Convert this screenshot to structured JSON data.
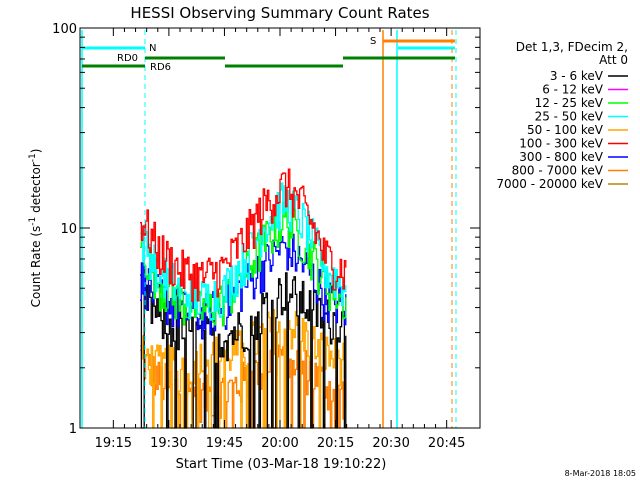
{
  "chart_data": {
    "type": "line",
    "title": "HESSI Observing Summary Count Rates",
    "xlabel": "Start Time (03-Mar-18 19:10:22)",
    "ylabel_main": "Count Rate (s",
    "ylabel_sup1": "-1",
    "ylabel_mid": " detector",
    "ylabel_sup2": "-1",
    "ylabel_end": ")",
    "yscale": "log",
    "ylim": [
      1,
      100
    ],
    "xlim_minutes": [
      19.1,
      20.9
    ],
    "yticks": [
      {
        "value": 100,
        "label": "100"
      },
      {
        "value": 10,
        "label": "10"
      },
      {
        "value": 1,
        "label": "1"
      }
    ],
    "xticks": [
      {
        "value": 19.25,
        "label": "19:15"
      },
      {
        "value": 19.5,
        "label": "19:30"
      },
      {
        "value": 19.75,
        "label": "19:45"
      },
      {
        "value": 20.0,
        "label": "20:00"
      },
      {
        "value": 20.25,
        "label": "20:15"
      },
      {
        "value": 20.5,
        "label": "20:30"
      },
      {
        "value": 20.75,
        "label": "20:45"
      }
    ],
    "legend_header": [
      "Det 1,3, FDecim 2,",
      "Att 0"
    ],
    "series": [
      {
        "name": "3 - 6 keV",
        "color": "#000000",
        "x": [
          19.37,
          19.45,
          19.55,
          19.65,
          19.75,
          19.85,
          19.95,
          20.02,
          20.1,
          20.2,
          20.3
        ],
        "y": [
          4.5,
          3.5,
          3.0,
          2.8,
          2.8,
          3.2,
          4.2,
          4.8,
          4.2,
          3.5,
          3.2
        ]
      },
      {
        "name": "6 - 12 keV",
        "color": "#ff00ff",
        "x": [],
        "y": []
      },
      {
        "name": "12 - 25 keV",
        "color": "#00ff00",
        "x": [
          19.37,
          19.45,
          19.55,
          19.65,
          19.75,
          19.85,
          19.95,
          20.02,
          20.1,
          20.2,
          20.3
        ],
        "y": [
          8.0,
          5.2,
          4.2,
          3.8,
          4.2,
          6.0,
          9.0,
          11.0,
          8.5,
          5.2,
          4.2
        ]
      },
      {
        "name": "25 - 50 keV",
        "color": "#00ffff",
        "x": [
          19.37,
          19.45,
          19.55,
          19.65,
          19.75,
          19.85,
          19.95,
          20.02,
          20.1,
          20.2,
          20.3
        ],
        "y": [
          9.0,
          6.0,
          4.8,
          4.3,
          4.8,
          7.0,
          11.0,
          13.5,
          10.5,
          6.2,
          4.8
        ]
      },
      {
        "name": "50 - 100 keV",
        "color": "#ffa500",
        "x": [
          19.37,
          19.45,
          19.55,
          19.65,
          19.75,
          19.85,
          19.95,
          20.02,
          20.1,
          20.2,
          20.3
        ],
        "y": [
          2.3,
          2.0,
          2.0,
          2.2,
          2.3,
          2.5,
          3.0,
          3.3,
          2.9,
          2.3,
          2.1
        ]
      },
      {
        "name": "100 - 300 keV",
        "color": "#ff0000",
        "x": [
          19.37,
          19.45,
          19.55,
          19.65,
          19.75,
          19.85,
          19.95,
          20.02,
          20.1,
          20.2,
          20.3
        ],
        "y": [
          11.0,
          7.5,
          6.0,
          5.5,
          6.2,
          9.0,
          13.5,
          16.0,
          12.5,
          7.0,
          5.8
        ]
      },
      {
        "name": "300 - 800 keV",
        "color": "#0000ff",
        "x": [
          19.37,
          19.45,
          19.55,
          19.65,
          19.75,
          19.85,
          19.95,
          20.02,
          20.1,
          20.2,
          20.3
        ],
        "y": [
          5.5,
          4.5,
          3.8,
          3.6,
          4.0,
          5.2,
          6.8,
          8.0,
          6.5,
          4.5,
          3.8
        ]
      },
      {
        "name": "800 - 7000 keV",
        "color": "#ff8000",
        "x": [
          19.37,
          19.45,
          19.55,
          19.65,
          19.75,
          19.85,
          19.95,
          20.02,
          20.1,
          20.2,
          20.3
        ],
        "y": [
          2.2,
          1.7,
          1.5,
          1.4,
          1.5,
          1.7,
          2.1,
          2.4,
          2.0,
          1.6,
          1.4
        ]
      },
      {
        "name": "7000 - 20000 keV",
        "color": "#b8860b",
        "x": [],
        "y": []
      }
    ],
    "annotations": {
      "N": {
        "label": "N",
        "color": "#00ffff"
      },
      "S": {
        "label": "S",
        "color": "#ff8000"
      },
      "RD0": {
        "label": "RD0",
        "color": "#008000"
      },
      "RD6": {
        "label": "RD6",
        "color": "#008000"
      }
    },
    "footer": "8-Mar-2018 18:05"
  }
}
